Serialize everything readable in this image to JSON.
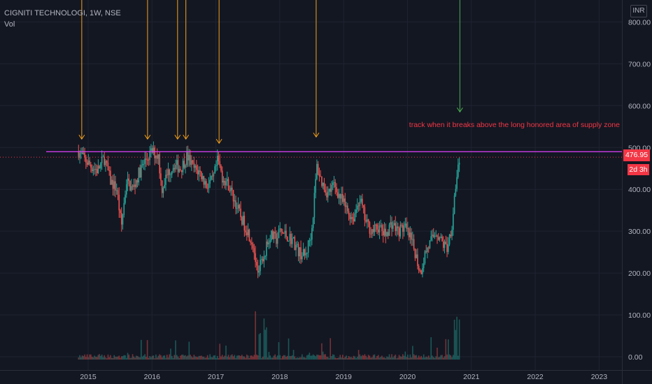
{
  "legend": {
    "symbol": "CIGNITI TECHNOLOGI, 1W, NSE",
    "volume": "Vol"
  },
  "currency": "INR",
  "last_price_label": "476.95",
  "countdown_label": "2d 3h",
  "annotation": "track when it breaks above the long honored area of supply zone",
  "colors": {
    "background": "#131722",
    "grid": "#1f2330",
    "up": "#26a69a",
    "down": "#ef5350",
    "resistance": "#e040fb",
    "arrow_orange": "#f7a21b",
    "arrow_green": "#4caf50",
    "annotation": "#f23645"
  },
  "chart_data": {
    "type": "candlestick",
    "x_axis_ticks": [
      "2015",
      "2016",
      "2017",
      "2018",
      "2019",
      "2020",
      "2021",
      "2022",
      "2023"
    ],
    "y_axis_ticks": [
      "800.00",
      "700.00",
      "600.00",
      "500.00",
      "400.00",
      "300.00",
      "200.00",
      "100.00",
      "0.00"
    ],
    "ylim": [
      0,
      830
    ],
    "xlim": [
      2014.32,
      2023.5
    ],
    "last_price": 476.95,
    "resistance_level": 490,
    "price_path": [
      [
        2014.85,
        490
      ],
      [
        2014.95,
        470
      ],
      [
        2015.05,
        455
      ],
      [
        2015.15,
        445
      ],
      [
        2015.25,
        475
      ],
      [
        2015.35,
        420
      ],
      [
        2015.45,
        400
      ],
      [
        2015.52,
        310
      ],
      [
        2015.6,
        420
      ],
      [
        2015.7,
        400
      ],
      [
        2015.8,
        440
      ],
      [
        2015.9,
        470
      ],
      [
        2016.0,
        490
      ],
      [
        2016.1,
        480
      ],
      [
        2016.15,
        400
      ],
      [
        2016.25,
        440
      ],
      [
        2016.35,
        460
      ],
      [
        2016.45,
        450
      ],
      [
        2016.55,
        480
      ],
      [
        2016.65,
        450
      ],
      [
        2016.75,
        440
      ],
      [
        2016.85,
        410
      ],
      [
        2016.95,
        420
      ],
      [
        2017.03,
        470
      ],
      [
        2017.1,
        430
      ],
      [
        2017.2,
        410
      ],
      [
        2017.3,
        370
      ],
      [
        2017.4,
        330
      ],
      [
        2017.5,
        300
      ],
      [
        2017.58,
        270
      ],
      [
        2017.65,
        200
      ],
      [
        2017.75,
        240
      ],
      [
        2017.85,
        290
      ],
      [
        2017.95,
        280
      ],
      [
        2018.0,
        300
      ],
      [
        2018.1,
        290
      ],
      [
        2018.2,
        280
      ],
      [
        2018.3,
        250
      ],
      [
        2018.4,
        240
      ],
      [
        2018.5,
        300
      ],
      [
        2018.58,
        455
      ],
      [
        2018.65,
        420
      ],
      [
        2018.75,
        390
      ],
      [
        2018.85,
        410
      ],
      [
        2018.95,
        380
      ],
      [
        2019.05,
        350
      ],
      [
        2019.15,
        330
      ],
      [
        2019.25,
        380
      ],
      [
        2019.35,
        320
      ],
      [
        2019.45,
        300
      ],
      [
        2019.55,
        310
      ],
      [
        2019.65,
        290
      ],
      [
        2019.75,
        320
      ],
      [
        2019.85,
        300
      ],
      [
        2019.95,
        310
      ],
      [
        2020.05,
        280
      ],
      [
        2020.12,
        250
      ],
      [
        2020.2,
        200
      ],
      [
        2020.28,
        250
      ],
      [
        2020.35,
        270
      ],
      [
        2020.45,
        300
      ],
      [
        2020.55,
        270
      ],
      [
        2020.62,
        260
      ],
      [
        2020.7,
        320
      ],
      [
        2020.75,
        400
      ],
      [
        2020.8,
        470
      ],
      [
        2020.83,
        476.95
      ]
    ],
    "volume_max": 120,
    "arrows": [
      {
        "x": 2014.9,
        "color": "orange",
        "target_y": 520
      },
      {
        "x": 2015.93,
        "color": "orange",
        "target_y": 520
      },
      {
        "x": 2016.4,
        "color": "orange",
        "target_y": 520
      },
      {
        "x": 2016.53,
        "color": "orange",
        "target_y": 520
      },
      {
        "x": 2017.05,
        "color": "orange",
        "target_y": 510
      },
      {
        "x": 2018.57,
        "color": "orange",
        "target_y": 525
      },
      {
        "x": 2020.82,
        "color": "green",
        "target_y": 585
      }
    ]
  }
}
